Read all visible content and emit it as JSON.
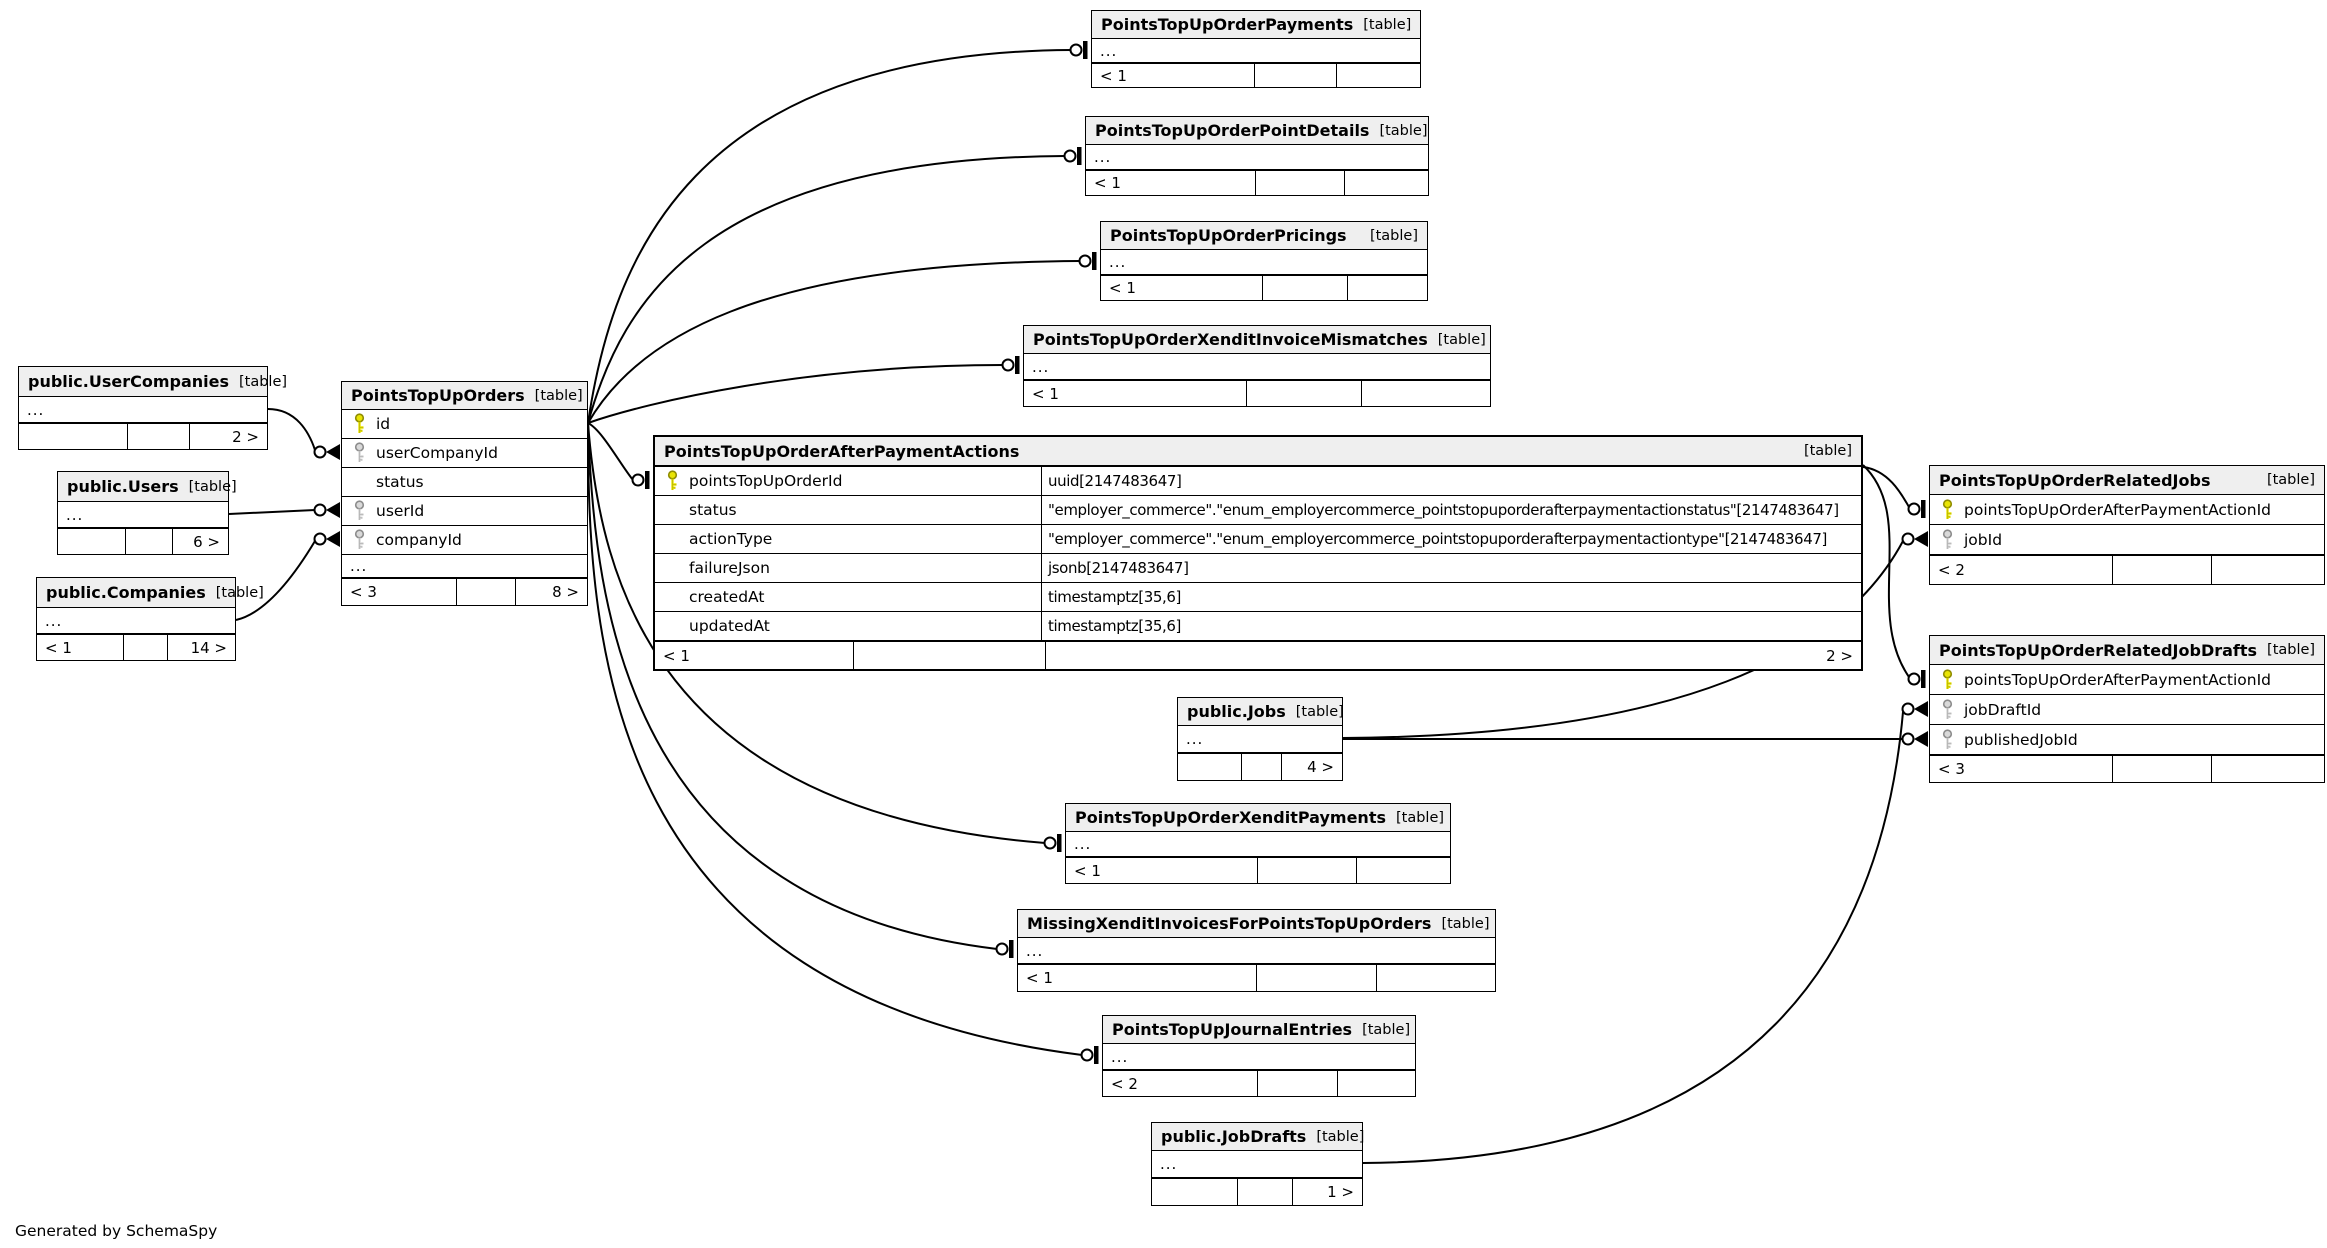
{
  "page": {
    "footer_note": "Generated by SchemaSpy"
  },
  "tables": [
    {
      "id": "payments",
      "name": "PointsTopUpOrderPayments",
      "badge": "[table]",
      "kind": "stub",
      "ellipsis": "...",
      "footer": [
        "< 1",
        "",
        ""
      ]
    },
    {
      "id": "pointDetails",
      "name": "PointsTopUpOrderPointDetails",
      "badge": "[table]",
      "kind": "stub",
      "ellipsis": "...",
      "footer": [
        "< 1",
        "",
        ""
      ]
    },
    {
      "id": "pricings",
      "name": "PointsTopUpOrderPricings",
      "badge": "[table]",
      "kind": "stub",
      "ellipsis": "...",
      "footer": [
        "< 1",
        "",
        ""
      ]
    },
    {
      "id": "mismatches",
      "name": "PointsTopUpOrderXenditInvoiceMismatches",
      "badge": "[table]",
      "kind": "stub",
      "ellipsis": "...",
      "footer": [
        "< 1",
        "",
        ""
      ]
    },
    {
      "id": "userCompanies",
      "name": "public.UserCompanies",
      "badge": "[table]",
      "kind": "stub",
      "ellipsis": "...",
      "footer": [
        "",
        "",
        "2 >"
      ]
    },
    {
      "id": "users",
      "name": "public.Users",
      "badge": "[table]",
      "kind": "stub",
      "ellipsis": "...",
      "footer": [
        "",
        "",
        "6 >"
      ]
    },
    {
      "id": "companies",
      "name": "public.Companies",
      "badge": "[table]",
      "kind": "stub",
      "ellipsis": "...",
      "footer": [
        "< 1",
        "",
        "14 >"
      ]
    },
    {
      "id": "orders",
      "name": "PointsTopUpOrders",
      "badge": "[table]",
      "kind": "columns",
      "ellipsis": "...",
      "columns": [
        {
          "name": "id",
          "key": "pk"
        },
        {
          "name": "userCompanyId",
          "key": "fk"
        },
        {
          "name": "status",
          "key": ""
        },
        {
          "name": "userId",
          "key": "fk"
        },
        {
          "name": "companyId",
          "key": "fk"
        }
      ],
      "footer": [
        "< 3",
        "",
        "8 >"
      ]
    },
    {
      "id": "afterPaymentActions",
      "name": "PointsTopUpOrderAfterPaymentActions",
      "badge": "[table]",
      "kind": "detail",
      "columns": [
        {
          "name": "pointsTopUpOrderId",
          "key": "pk",
          "type": "uuid[2147483647]"
        },
        {
          "name": "status",
          "key": "",
          "type": "\"employer_commerce\".\"enum_employercommerce_pointstopuporderafterpaymentactionstatus\"[2147483647]"
        },
        {
          "name": "actionType",
          "key": "",
          "type": "\"employer_commerce\".\"enum_employercommerce_pointstopuporderafterpaymentactiontype\"[2147483647]"
        },
        {
          "name": "failureJson",
          "key": "",
          "type": "jsonb[2147483647]"
        },
        {
          "name": "createdAt",
          "key": "",
          "type": "timestamptz[35,6]"
        },
        {
          "name": "updatedAt",
          "key": "",
          "type": "timestamptz[35,6]"
        }
      ],
      "footer": [
        "< 1",
        "",
        "2 >"
      ]
    },
    {
      "id": "relatedJobs",
      "name": "PointsTopUpOrderRelatedJobs",
      "badge": "[table]",
      "kind": "columns",
      "columns": [
        {
          "name": "pointsTopUpOrderAfterPaymentActionId",
          "key": "pk"
        },
        {
          "name": "jobId",
          "key": "fk"
        }
      ],
      "footer": [
        "< 2",
        "",
        ""
      ]
    },
    {
      "id": "relatedJobDrafts",
      "name": "PointsTopUpOrderRelatedJobDrafts",
      "badge": "[table]",
      "kind": "columns",
      "columns": [
        {
          "name": "pointsTopUpOrderAfterPaymentActionId",
          "key": "pk"
        },
        {
          "name": "jobDraftId",
          "key": "fk"
        },
        {
          "name": "publishedJobId",
          "key": "fk"
        }
      ],
      "footer": [
        "< 3",
        "",
        ""
      ]
    },
    {
      "id": "jobs",
      "name": "public.Jobs",
      "badge": "[table]",
      "kind": "stub",
      "ellipsis": "...",
      "footer": [
        "",
        "",
        "4 >"
      ]
    },
    {
      "id": "xenditPayments",
      "name": "PointsTopUpOrderXenditPayments",
      "badge": "[table]",
      "kind": "stub",
      "ellipsis": "...",
      "footer": [
        "< 1",
        "",
        ""
      ]
    },
    {
      "id": "missingXenditInvoices",
      "name": "MissingXenditInvoicesForPointsTopUpOrders",
      "badge": "[table]",
      "kind": "stub",
      "ellipsis": "...",
      "footer": [
        "< 1",
        "",
        ""
      ]
    },
    {
      "id": "journalEntries",
      "name": "PointsTopUpJournalEntries",
      "badge": "[table]",
      "kind": "stub",
      "ellipsis": "...",
      "footer": [
        "< 2",
        "",
        ""
      ]
    },
    {
      "id": "jobDrafts",
      "name": "public.JobDrafts",
      "badge": "[table]",
      "kind": "stub",
      "ellipsis": "...",
      "footer": [
        "",
        "",
        "1 >"
      ]
    }
  ],
  "edges": [
    {
      "from": "PointsTopUpOrders.id",
      "to": "PointsTopUpOrderPayments",
      "end": "bar"
    },
    {
      "from": "PointsTopUpOrders.id",
      "to": "PointsTopUpOrderPointDetails",
      "end": "bar"
    },
    {
      "from": "PointsTopUpOrders.id",
      "to": "PointsTopUpOrderPricings",
      "end": "bar"
    },
    {
      "from": "PointsTopUpOrders.id",
      "to": "PointsTopUpOrderXenditInvoiceMismatches",
      "end": "bar"
    },
    {
      "from": "PointsTopUpOrders.id",
      "to": "PointsTopUpOrderAfterPaymentActions.pointsTopUpOrderId",
      "end": "bar"
    },
    {
      "from": "PointsTopUpOrders.id",
      "to": "PointsTopUpOrderXenditPayments",
      "end": "bar"
    },
    {
      "from": "PointsTopUpOrders.id",
      "to": "MissingXenditInvoicesForPointsTopUpOrders",
      "end": "bar"
    },
    {
      "from": "PointsTopUpOrders.id",
      "to": "PointsTopUpJournalEntries",
      "end": "bar"
    },
    {
      "from": "public.UserCompanies",
      "to": "PointsTopUpOrders.userCompanyId",
      "end": "arrow"
    },
    {
      "from": "public.Users",
      "to": "PointsTopUpOrders.userId",
      "end": "arrow"
    },
    {
      "from": "public.Companies",
      "to": "PointsTopUpOrders.companyId",
      "end": "arrow"
    },
    {
      "from": "PointsTopUpOrderAfterPaymentActions",
      "to": "PointsTopUpOrderRelatedJobs.pointsTopUpOrderAfterPaymentActionId",
      "end": "bar"
    },
    {
      "from": "PointsTopUpOrderAfterPaymentActions",
      "to": "PointsTopUpOrderRelatedJobDrafts.pointsTopUpOrderAfterPaymentActionId",
      "end": "bar"
    },
    {
      "from": "public.Jobs",
      "to": "PointsTopUpOrderRelatedJobs.jobId",
      "end": "arrow"
    },
    {
      "from": "public.JobDrafts",
      "to": "PointsTopUpOrderRelatedJobDrafts.jobDraftId",
      "end": "arrow"
    },
    {
      "from": "public.Jobs",
      "to": "PointsTopUpOrderRelatedJobDrafts.publishedJobId",
      "end": "arrow"
    }
  ]
}
